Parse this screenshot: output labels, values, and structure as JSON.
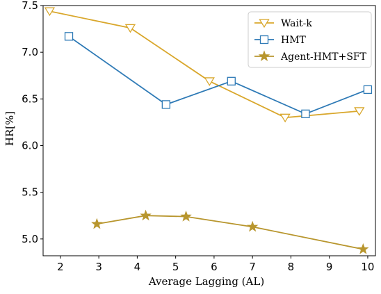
{
  "chart_data": {
    "type": "line",
    "xlabel": "Average Lagging (AL)",
    "ylabel": "HR[%]",
    "xlim": [
      1.55,
      10.2
    ],
    "ylim": [
      4.82,
      7.5
    ],
    "xticks": [
      2,
      3,
      4,
      5,
      6,
      7,
      8,
      9,
      10
    ],
    "yticks": [
      5.0,
      5.5,
      6.0,
      6.5,
      7.0,
      7.5
    ],
    "xtick_labels": [
      "2",
      "3",
      "4",
      "5",
      "6",
      "7",
      "8",
      "9",
      "10"
    ],
    "ytick_labels": [
      "5.0",
      "5.5",
      "6.0",
      "6.5",
      "7.0",
      "7.5"
    ],
    "grid": false,
    "legend_position": "top-right",
    "series": [
      {
        "name": "Wait-k",
        "color": "#d9a72c",
        "marker": "triangle-down",
        "x": [
          1.72,
          3.82,
          5.88,
          7.85,
          9.78
        ],
        "y": [
          7.44,
          7.26,
          6.69,
          6.3,
          6.37
        ]
      },
      {
        "name": "HMT",
        "color": "#2e7ab6",
        "marker": "square",
        "x": [
          2.22,
          4.75,
          6.45,
          8.38,
          10.0
        ],
        "y": [
          7.17,
          6.44,
          6.69,
          6.34,
          6.6
        ]
      },
      {
        "name": "Agent-HMT+SFT",
        "color": "#b8962e",
        "marker": "star",
        "x": [
          2.95,
          4.22,
          5.27,
          7.0,
          9.88
        ],
        "y": [
          5.16,
          5.25,
          5.24,
          5.13,
          4.89
        ]
      }
    ]
  }
}
